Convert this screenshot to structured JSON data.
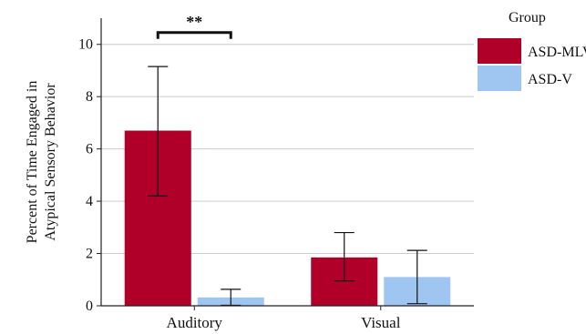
{
  "chart_data": {
    "type": "bar",
    "title": "",
    "xlabel": "",
    "ylabel": "Percent of Time Engaged in\nAtypical Sensory Behavior",
    "categories": [
      "Auditory",
      "Visual"
    ],
    "ylim": [
      0,
      11
    ],
    "yticks": [
      0,
      2,
      4,
      6,
      8,
      10
    ],
    "grid": "horizontal",
    "legend": {
      "title": "Group",
      "placement": "top-right"
    },
    "series": [
      {
        "name": "ASD-MLV",
        "color": "#b0002a",
        "values": [
          6.7,
          1.85
        ],
        "error_low": [
          4.2,
          0.95
        ],
        "error_high": [
          9.15,
          2.8
        ]
      },
      {
        "name": "ASD-V",
        "color": "#9fc5f1",
        "values": [
          0.32,
          1.1
        ],
        "error_low": [
          0.02,
          0.08
        ],
        "error_high": [
          0.63,
          2.12
        ]
      }
    ],
    "annotations": [
      {
        "text": "**",
        "category": "Auditory",
        "between_series": [
          0,
          1
        ],
        "y": 10.45
      }
    ]
  }
}
